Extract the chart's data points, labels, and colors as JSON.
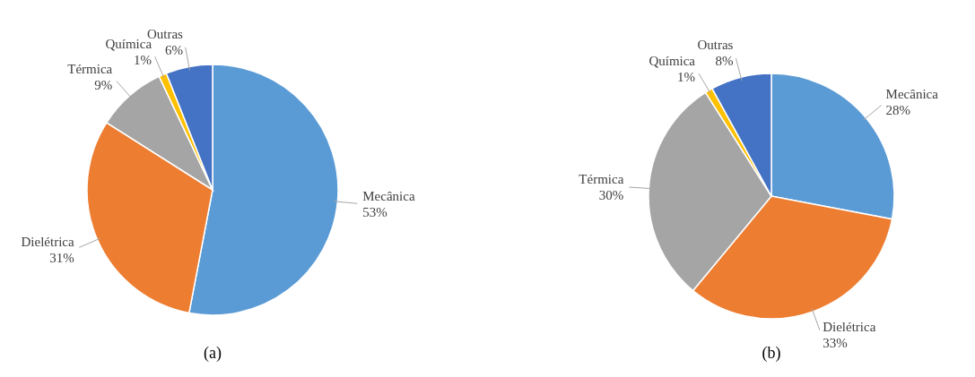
{
  "chart_data": [
    {
      "type": "pie",
      "categories": [
        "Mecânica",
        "Dielétrica",
        "Térmica",
        "Química",
        "Outras"
      ],
      "values": [
        53,
        31,
        9,
        1,
        6
      ],
      "value_labels": [
        "53%",
        "31%",
        "9%",
        "1%",
        "6%"
      ],
      "colors": [
        "#5b9bd5",
        "#ed7d31",
        "#a5a5a5",
        "#ffc000",
        "#4472c4"
      ],
      "annotations": [
        "(a)"
      ]
    },
    {
      "type": "pie",
      "categories": [
        "Mecânica",
        "Dielétrica",
        "Térmica",
        "Química",
        "Outras"
      ],
      "values": [
        28,
        33,
        30,
        1,
        8
      ],
      "value_labels": [
        "28%",
        "33%",
        "30%",
        "1%",
        "8%"
      ],
      "colors": [
        "#5b9bd5",
        "#ed7d31",
        "#a5a5a5",
        "#ffc000",
        "#4472c4"
      ],
      "annotations": [
        "(b)"
      ]
    }
  ]
}
